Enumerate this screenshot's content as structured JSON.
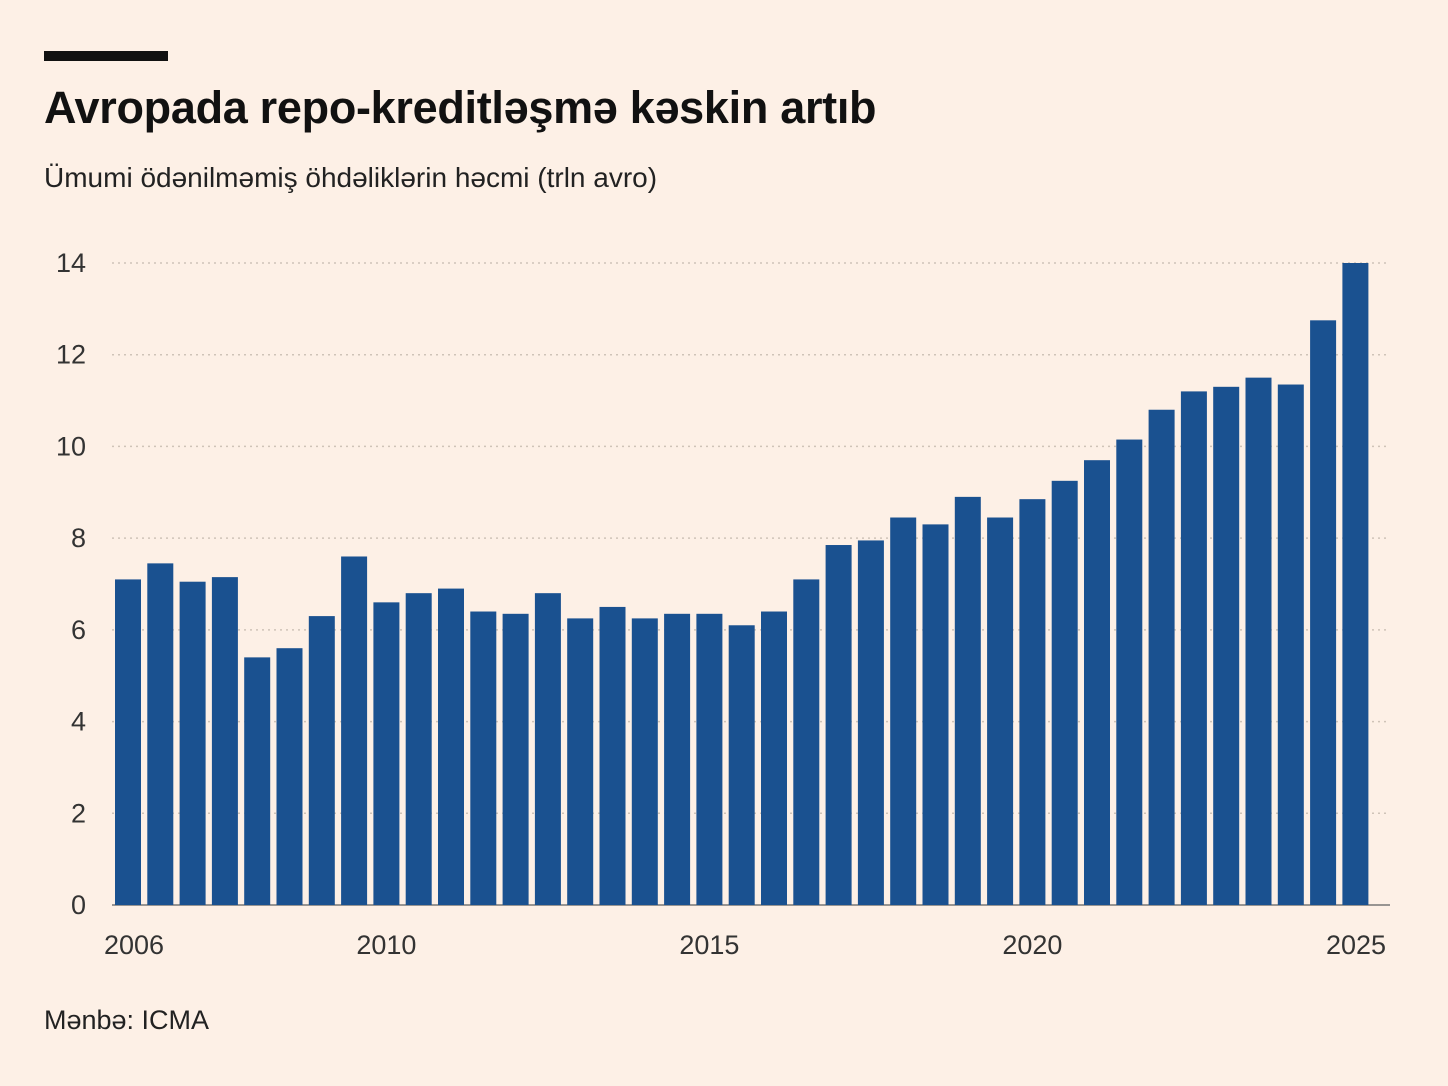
{
  "title": "Avropada repo-kreditləşmə kəskin artıb",
  "subtitle": "Ümumi ödənilməmiş öhdəliklərin həcmi (trln avro)",
  "source": "Mənbə: ICMA",
  "colors": {
    "background": "#fdf0e6",
    "bar": "#1a5190",
    "accent_bar": "#111111"
  },
  "chart_data": {
    "type": "bar",
    "title": "Avropada repo-kreditləşmə kəskin artıb",
    "subtitle": "Ümumi ödənilməmiş öhdəliklərin həcmi (trln avro)",
    "xlabel": "",
    "ylabel": "",
    "ylim": [
      0,
      14
    ],
    "yticks": [
      "0",
      "2",
      "4",
      "6",
      "8",
      "10",
      "12",
      "14"
    ],
    "xticks": [
      {
        "label": "2006",
        "x": 2006
      },
      {
        "label": "2010",
        "x": 2010
      },
      {
        "label": "2015",
        "x": 2015
      },
      {
        "label": "2020",
        "x": 2020
      },
      {
        "label": "2025",
        "x": 2025
      }
    ],
    "grid": true,
    "x": [
      2006,
      2006.5,
      2007,
      2007.5,
      2008,
      2008.5,
      2009,
      2009.5,
      2010,
      2010.5,
      2011,
      2011.5,
      2012,
      2012.5,
      2013,
      2013.5,
      2014,
      2014.5,
      2015,
      2015.5,
      2016,
      2016.5,
      2017,
      2017.5,
      2018,
      2018.5,
      2019,
      2019.5,
      2020,
      2020.5,
      2021,
      2021.5,
      2022,
      2022.5,
      2023,
      2023.5,
      2024,
      2024.5,
      2025
    ],
    "values": [
      7.1,
      7.45,
      7.05,
      7.15,
      5.4,
      5.6,
      6.3,
      7.6,
      6.6,
      6.8,
      6.9,
      6.4,
      6.35,
      6.8,
      6.25,
      6.5,
      6.25,
      6.35,
      6.35,
      6.1,
      6.4,
      7.1,
      7.85,
      7.95,
      8.45,
      8.3,
      8.9,
      8.45,
      8.85,
      9.25,
      9.7,
      10.15,
      10.8,
      11.2,
      11.3,
      11.5,
      11.35,
      12.75,
      14.0
    ]
  }
}
